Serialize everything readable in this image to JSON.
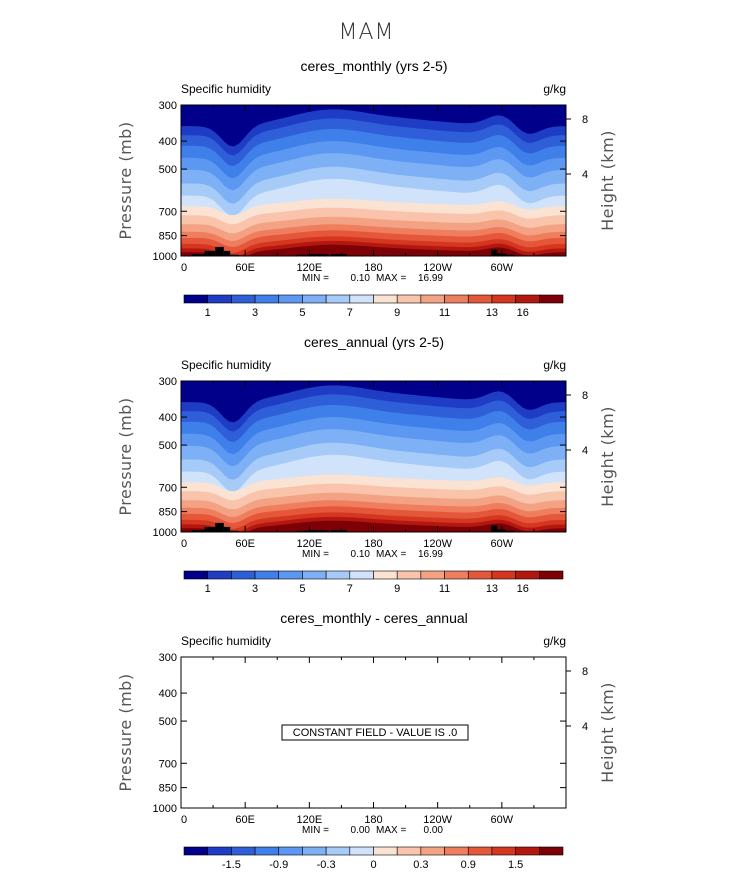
{
  "suptitle": "MAM",
  "colormap": [
    "#00008B",
    "#1E3DC4",
    "#2F5FD8",
    "#3F7FEA",
    "#5C98F2",
    "#7EB0F6",
    "#A7CBF8",
    "#D0E3FA",
    "#FBE3D3",
    "#F9C4AB",
    "#F4A284",
    "#EF7E5E",
    "#E4573A",
    "#D53620",
    "#B3170F",
    "#7E0007"
  ],
  "chart_data": [
    {
      "type": "contour",
      "title": "ceres_monthly (yrs 2-5)",
      "left_label": "Specific humidity",
      "right_label": "g/kg",
      "ylabel": "Pressure (mb)",
      "ylabel_right": "Height (km)",
      "x_ticks": [
        "0",
        "60E",
        "120E",
        "180",
        "120W",
        "60W"
      ],
      "y_ticks": [
        "300",
        "400",
        "500",
        "700",
        "850",
        "1000"
      ],
      "y_right_ticks": [
        "8",
        "4"
      ],
      "stats": {
        "min_label": "MIN =",
        "min": "0.10",
        "max_label": "MAX =",
        "max": "16.99"
      },
      "colorbar_labels": [
        "1",
        "3",
        "5",
        "7",
        "9",
        "11",
        "13",
        "16"
      ],
      "field_max_level": 16.99,
      "constant_text": ""
    },
    {
      "type": "contour",
      "title": "ceres_annual (yrs 2-5)",
      "left_label": "Specific humidity",
      "right_label": "g/kg",
      "ylabel": "Pressure (mb)",
      "ylabel_right": "Height (km)",
      "x_ticks": [
        "0",
        "60E",
        "120E",
        "180",
        "120W",
        "60W"
      ],
      "y_ticks": [
        "300",
        "400",
        "500",
        "700",
        "850",
        "1000"
      ],
      "y_right_ticks": [
        "8",
        "4"
      ],
      "stats": {
        "min_label": "MIN =",
        "min": "0.10",
        "max_label": "MAX =",
        "max": "16.99"
      },
      "colorbar_labels": [
        "1",
        "3",
        "5",
        "7",
        "9",
        "11",
        "13",
        "16"
      ],
      "field_max_level": 16.99,
      "constant_text": ""
    },
    {
      "type": "contour",
      "title": "ceres_monthly - ceres_annual",
      "left_label": "Specific humidity",
      "right_label": "g/kg",
      "ylabel": "Pressure (mb)",
      "ylabel_right": "Height (km)",
      "x_ticks": [
        "0",
        "60E",
        "120E",
        "180",
        "120W",
        "60W"
      ],
      "y_ticks": [
        "300",
        "400",
        "500",
        "700",
        "850",
        "1000"
      ],
      "y_right_ticks": [
        "8",
        "4"
      ],
      "stats": {
        "min_label": "MIN =",
        "min": "0.00",
        "max_label": "MAX =",
        "max": "0.00"
      },
      "colorbar_labels": [
        "-1.5",
        "-0.9",
        "-0.3",
        "0",
        "0.3",
        "0.9",
        "1.5"
      ],
      "field_max_level": 0,
      "constant_text": "CONSTANT FIELD - VALUE IS .0"
    }
  ]
}
